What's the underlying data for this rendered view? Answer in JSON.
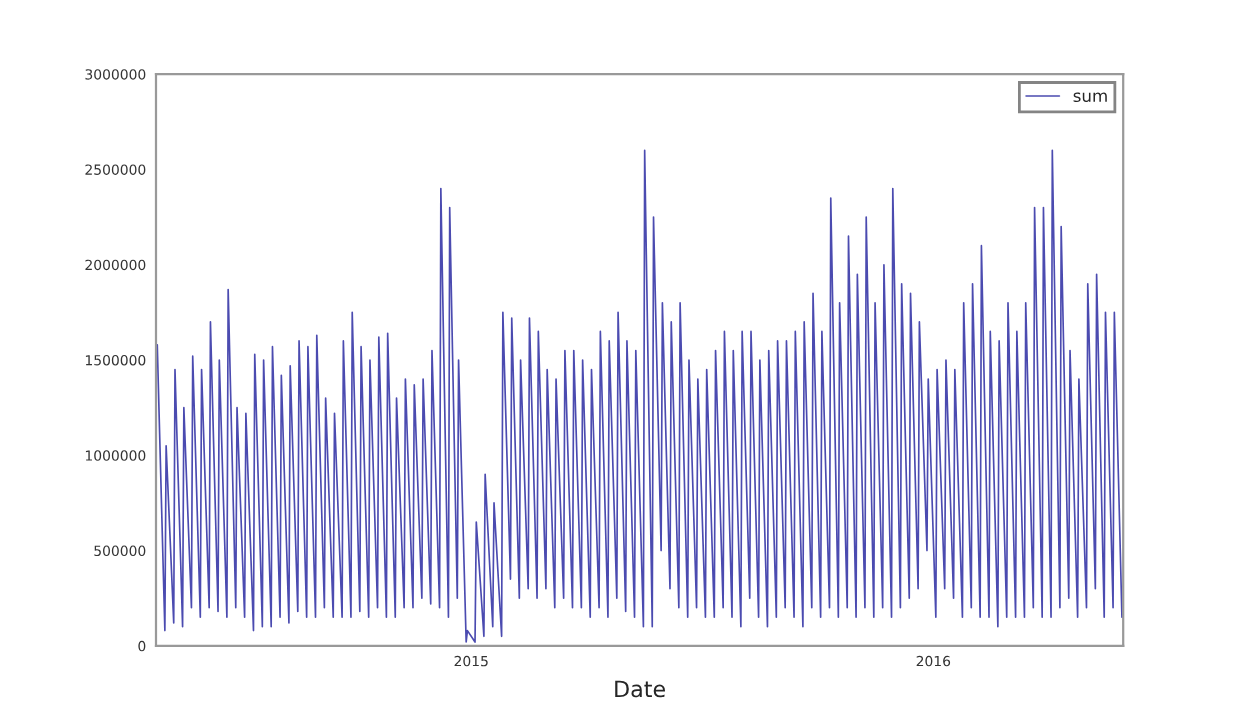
{
  "chart_data": {
    "type": "line",
    "xlabel": "Date",
    "x": [
      "2014-04-28",
      "2014-05-04",
      "2014-05-05",
      "2014-05-11",
      "2014-05-12",
      "2014-05-18",
      "2014-05-19",
      "2014-05-25",
      "2014-05-26",
      "2014-06-01",
      "2014-06-02",
      "2014-06-08",
      "2014-06-09",
      "2014-06-15",
      "2014-06-16",
      "2014-06-22",
      "2014-06-23",
      "2014-06-29",
      "2014-06-30",
      "2014-07-06",
      "2014-07-07",
      "2014-07-13",
      "2014-07-14",
      "2014-07-20",
      "2014-07-21",
      "2014-07-27",
      "2014-07-28",
      "2014-08-03",
      "2014-08-04",
      "2014-08-10",
      "2014-08-11",
      "2014-08-17",
      "2014-08-18",
      "2014-08-24",
      "2014-08-25",
      "2014-08-31",
      "2014-09-01",
      "2014-09-07",
      "2014-09-08",
      "2014-09-14",
      "2014-09-15",
      "2014-09-21",
      "2014-09-22",
      "2014-09-28",
      "2014-09-29",
      "2014-10-05",
      "2014-10-06",
      "2014-10-12",
      "2014-10-13",
      "2014-10-19",
      "2014-10-20",
      "2014-10-26",
      "2014-10-27",
      "2014-11-02",
      "2014-11-03",
      "2014-11-09",
      "2014-11-10",
      "2014-11-16",
      "2014-11-17",
      "2014-11-23",
      "2014-11-24",
      "2014-11-30",
      "2014-12-01",
      "2014-12-07",
      "2014-12-08",
      "2014-12-14",
      "2014-12-15",
      "2014-12-21",
      "2014-12-22",
      "2014-12-28",
      "2014-12-29",
      "2015-01-04",
      "2015-01-05",
      "2015-01-11",
      "2015-01-12",
      "2015-01-18",
      "2015-01-19",
      "2015-01-25",
      "2015-01-26",
      "2015-02-01",
      "2015-02-02",
      "2015-02-08",
      "2015-02-09",
      "2015-02-15",
      "2015-02-16",
      "2015-02-22",
      "2015-02-23",
      "2015-03-01",
      "2015-03-02",
      "2015-03-08",
      "2015-03-09",
      "2015-03-15",
      "2015-03-16",
      "2015-03-22",
      "2015-03-23",
      "2015-03-29",
      "2015-03-30",
      "2015-04-05",
      "2015-04-06",
      "2015-04-12",
      "2015-04-13",
      "2015-04-19",
      "2015-04-20",
      "2015-04-26",
      "2015-04-27",
      "2015-05-03",
      "2015-05-04",
      "2015-05-10",
      "2015-05-11",
      "2015-05-17",
      "2015-05-18",
      "2015-05-24",
      "2015-05-25",
      "2015-05-31",
      "2015-06-01",
      "2015-06-07",
      "2015-06-08",
      "2015-06-14",
      "2015-06-15",
      "2015-06-21",
      "2015-06-22",
      "2015-06-28",
      "2015-06-29",
      "2015-07-05",
      "2015-07-06",
      "2015-07-12",
      "2015-07-13",
      "2015-07-19",
      "2015-07-20",
      "2015-07-26",
      "2015-07-27",
      "2015-08-02",
      "2015-08-03",
      "2015-08-09",
      "2015-08-10",
      "2015-08-16",
      "2015-08-17",
      "2015-08-23",
      "2015-08-24",
      "2015-08-30",
      "2015-08-31",
      "2015-09-06",
      "2015-09-07",
      "2015-09-13",
      "2015-09-14",
      "2015-09-20",
      "2015-09-21",
      "2015-09-27",
      "2015-09-28",
      "2015-10-04",
      "2015-10-05",
      "2015-10-11",
      "2015-10-12",
      "2015-10-18",
      "2015-10-19",
      "2015-10-25",
      "2015-10-26",
      "2015-11-01",
      "2015-11-02",
      "2015-11-08",
      "2015-11-09",
      "2015-11-15",
      "2015-11-16",
      "2015-11-22",
      "2015-11-23",
      "2015-11-29",
      "2015-11-30",
      "2015-12-06",
      "2015-12-07",
      "2015-12-13",
      "2015-12-14",
      "2015-12-20",
      "2015-12-21",
      "2015-12-27",
      "2015-12-28",
      "2016-01-03",
      "2016-01-04",
      "2016-01-10",
      "2016-01-11",
      "2016-01-17",
      "2016-01-18",
      "2016-01-24",
      "2016-01-25",
      "2016-01-31",
      "2016-02-01",
      "2016-02-07",
      "2016-02-08",
      "2016-02-14",
      "2016-02-15",
      "2016-02-21",
      "2016-02-22",
      "2016-02-28",
      "2016-02-29",
      "2016-03-06",
      "2016-03-07",
      "2016-03-13",
      "2016-03-14",
      "2016-03-20",
      "2016-03-21",
      "2016-03-27",
      "2016-03-28",
      "2016-04-03",
      "2016-04-04",
      "2016-04-10",
      "2016-04-11",
      "2016-04-17",
      "2016-04-18",
      "2016-04-24",
      "2016-04-25",
      "2016-05-01",
      "2016-05-02",
      "2016-05-08",
      "2016-05-09",
      "2016-05-15",
      "2016-05-16",
      "2016-05-22",
      "2016-05-23",
      "2016-05-29"
    ],
    "series": [
      {
        "name": "sum",
        "color": "#4b4bb0",
        "values": [
          1580000,
          80000,
          1050000,
          120000,
          1450000,
          100000,
          1250000,
          200000,
          1520000,
          150000,
          1450000,
          200000,
          1700000,
          180000,
          1500000,
          150000,
          1870000,
          200000,
          1250000,
          150000,
          1220000,
          80000,
          1530000,
          100000,
          1500000,
          100000,
          1570000,
          150000,
          1420000,
          120000,
          1470000,
          180000,
          1600000,
          150000,
          1570000,
          150000,
          1630000,
          200000,
          1300000,
          150000,
          1220000,
          150000,
          1600000,
          150000,
          1750000,
          180000,
          1570000,
          150000,
          1500000,
          200000,
          1620000,
          150000,
          1640000,
          150000,
          1300000,
          200000,
          1400000,
          200000,
          1370000,
          250000,
          1400000,
          220000,
          1550000,
          200000,
          2400000,
          150000,
          2300000,
          250000,
          1500000,
          20000,
          80000,
          20000,
          650000,
          50000,
          900000,
          100000,
          750000,
          50000,
          1750000,
          350000,
          1720000,
          250000,
          1500000,
          300000,
          1720000,
          250000,
          1650000,
          300000,
          1450000,
          200000,
          1400000,
          250000,
          1550000,
          200000,
          1550000,
          200000,
          1500000,
          150000,
          1450000,
          200000,
          1650000,
          150000,
          1600000,
          250000,
          1750000,
          180000,
          1600000,
          150000,
          1550000,
          100000,
          2600000,
          100000,
          2250000,
          500000,
          1800000,
          300000,
          1700000,
          200000,
          1800000,
          150000,
          1500000,
          200000,
          1400000,
          150000,
          1450000,
          150000,
          1550000,
          200000,
          1650000,
          150000,
          1550000,
          100000,
          1650000,
          250000,
          1650000,
          150000,
          1500000,
          100000,
          1550000,
          150000,
          1600000,
          200000,
          1600000,
          150000,
          1650000,
          100000,
          1700000,
          200000,
          1850000,
          150000,
          1650000,
          200000,
          2350000,
          150000,
          1800000,
          200000,
          2150000,
          150000,
          1950000,
          200000,
          2250000,
          150000,
          1800000,
          200000,
          2000000,
          150000,
          2400000,
          200000,
          1900000,
          250000,
          1850000,
          300000,
          1700000,
          500000,
          1400000,
          150000,
          1450000,
          300000,
          1500000,
          250000,
          1450000,
          150000,
          1800000,
          200000,
          1900000,
          150000,
          2100000,
          150000,
          1650000,
          100000,
          1600000,
          150000,
          1800000,
          150000,
          1650000,
          150000,
          1800000,
          200000,
          2300000,
          150000,
          2300000,
          150000,
          2600000,
          200000,
          2200000,
          250000,
          1550000,
          150000,
          1400000,
          200000,
          1900000,
          300000,
          1950000,
          150000,
          1750000,
          200000,
          1750000,
          150000
        ]
      }
    ],
    "xlim": [
      "2014-04-27",
      "2016-05-30"
    ],
    "xticks": [
      {
        "value": "2015-01-01",
        "label": "2015"
      },
      {
        "value": "2016-01-01",
        "label": "2016"
      }
    ],
    "ylim": [
      0,
      3000000
    ],
    "yticks": [
      0,
      500000,
      1000000,
      1500000,
      2000000,
      2500000,
      3000000
    ],
    "legend": "top right"
  }
}
